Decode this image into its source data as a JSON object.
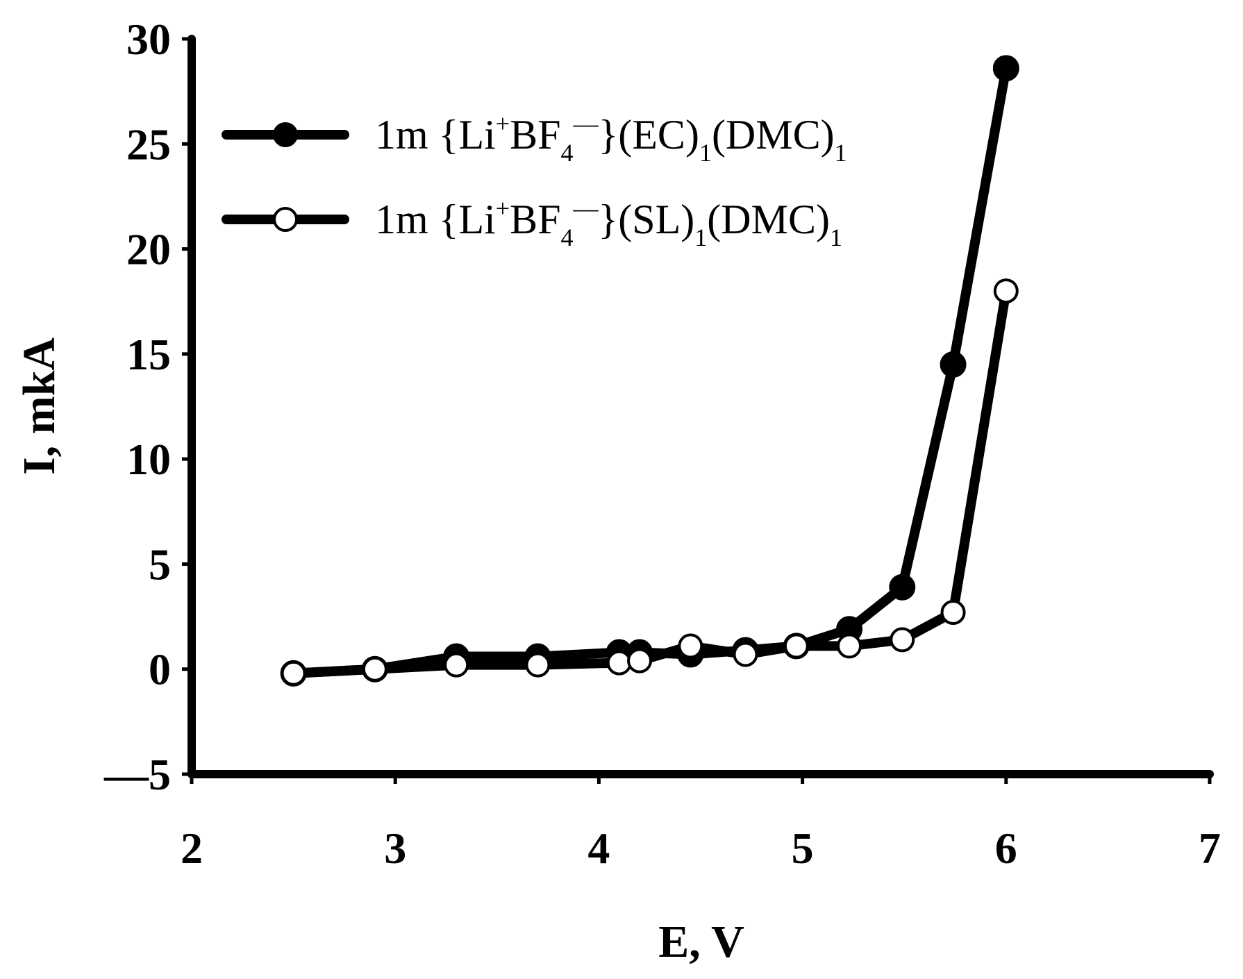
{
  "chart_data": {
    "type": "line",
    "title": "",
    "xlabel": "E, V",
    "ylabel": "I, mkA",
    "xlim": [
      2,
      7
    ],
    "ylim": [
      -5,
      30
    ],
    "x_ticks": [
      2,
      3,
      4,
      5,
      6,
      7
    ],
    "y_ticks": [
      -5,
      0,
      5,
      10,
      15,
      20,
      25,
      30
    ],
    "x_tick_labels": [
      "2",
      "3",
      "4",
      "5",
      "6",
      "7"
    ],
    "y_tick_labels": [
      "—5",
      "0",
      "5",
      "10",
      "15",
      "20",
      "25",
      "30"
    ],
    "grid": false,
    "legend_position": "top-left",
    "series": [
      {
        "name": "1m {Li+BF4−}(EC)1(DMC)1",
        "legend": {
          "pre": "1m {Li",
          "sup1": "+",
          "mid": "BF",
          "sub1": "4",
          "sup2": "—",
          "post1": "}(EC)",
          "sub2": "1",
          "post2": "(DMC)",
          "sub3": "1"
        },
        "marker": "filled-circle",
        "color": "#000000",
        "x": [
          2.5,
          2.9,
          3.3,
          3.7,
          4.1,
          4.2,
          4.45,
          4.72,
          4.97,
          5.23,
          5.49,
          5.74,
          6.0
        ],
        "y": [
          -0.2,
          0.0,
          0.6,
          0.6,
          0.8,
          0.8,
          0.7,
          0.9,
          1.1,
          1.9,
          3.9,
          14.5,
          28.6
        ]
      },
      {
        "name": "1m {Li+BF4−}(SL)1(DMC)1",
        "legend": {
          "pre": "1m {Li",
          "sup1": "+",
          "mid": "BF",
          "sub1": "4",
          "sup2": "—",
          "post1": "}(SL)",
          "sub2": "1",
          "post2": "(DMC)",
          "sub3": "1"
        },
        "marker": "open-circle",
        "color": "#000000",
        "x": [
          2.5,
          2.9,
          3.3,
          3.7,
          4.1,
          4.2,
          4.45,
          4.72,
          4.97,
          5.23,
          5.49,
          5.74,
          6.0
        ],
        "y": [
          -0.2,
          0.0,
          0.2,
          0.2,
          0.3,
          0.4,
          1.1,
          0.7,
          1.1,
          1.1,
          1.4,
          2.7,
          18.0
        ]
      }
    ]
  }
}
